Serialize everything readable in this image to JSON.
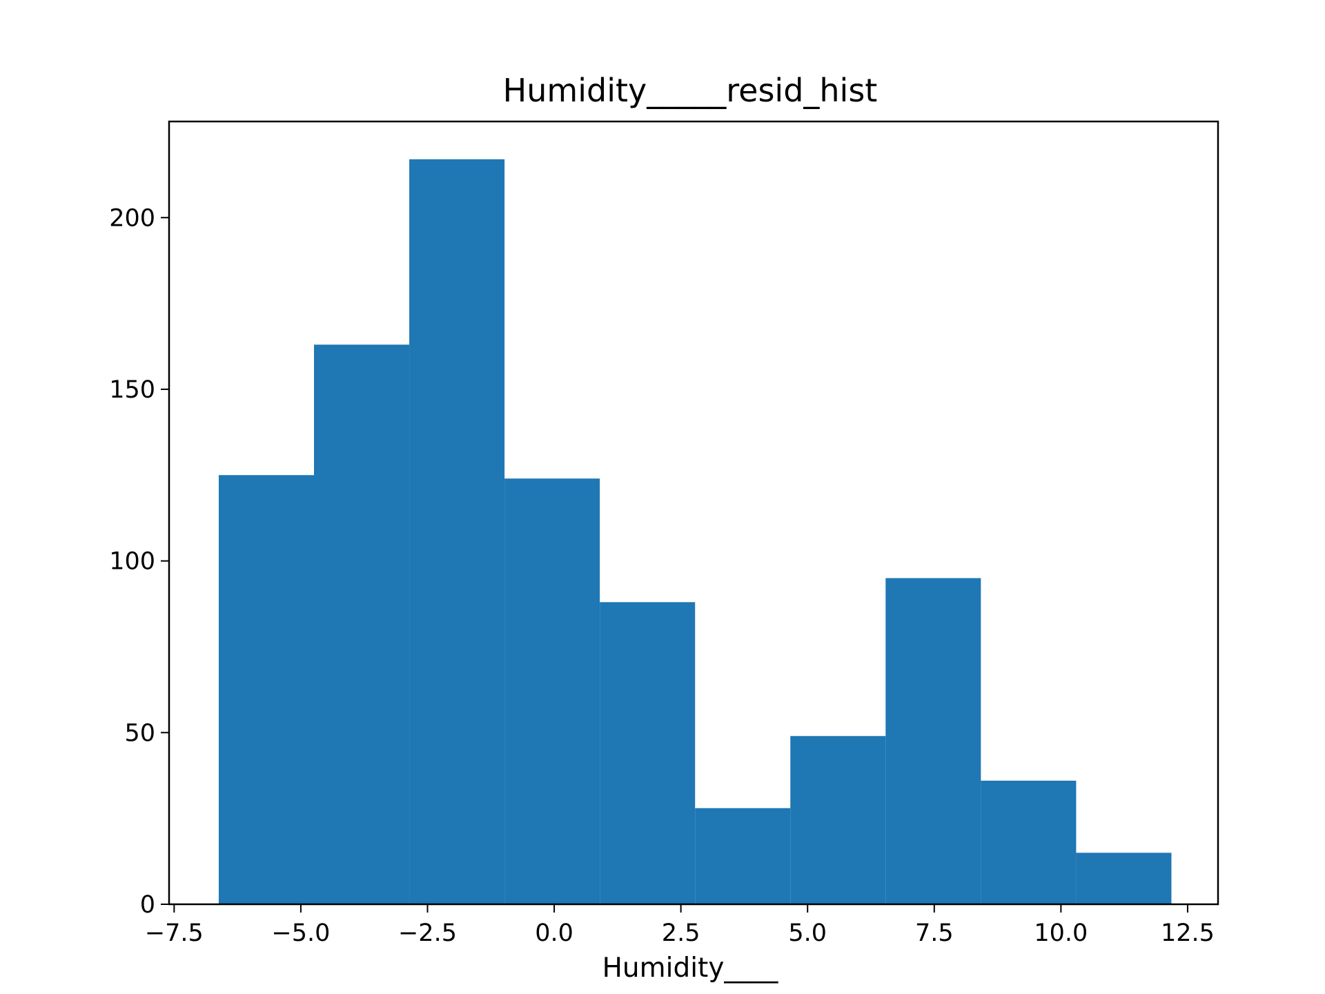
{
  "chart_data": {
    "type": "bar",
    "subtype": "histogram",
    "title": "Humidity_____resid_hist",
    "xlabel": "Humidity____",
    "ylabel": "",
    "bins": [
      {
        "x0": -6.62,
        "x1": -4.74,
        "count": 125
      },
      {
        "x0": -4.74,
        "x1": -2.86,
        "count": 163
      },
      {
        "x0": -2.86,
        "x1": -0.98,
        "count": 217
      },
      {
        "x0": -0.98,
        "x1": 0.9,
        "count": 124
      },
      {
        "x0": 0.9,
        "x1": 2.78,
        "count": 88
      },
      {
        "x0": 2.78,
        "x1": 4.66,
        "count": 28
      },
      {
        "x0": 4.66,
        "x1": 6.54,
        "count": 49
      },
      {
        "x0": 6.54,
        "x1": 8.42,
        "count": 95
      },
      {
        "x0": 8.42,
        "x1": 10.3,
        "count": 36
      },
      {
        "x0": 10.3,
        "x1": 12.18,
        "count": 15
      }
    ],
    "xlim": [
      -7.6,
      13.1
    ],
    "ylim": [
      0,
      228
    ],
    "xticks": [
      -7.5,
      -5.0,
      -2.5,
      0.0,
      2.5,
      5.0,
      7.5,
      10.0,
      12.5
    ],
    "xtick_labels": [
      "−7.5",
      "−5.0",
      "−2.5",
      "0.0",
      "2.5",
      "5.0",
      "7.5",
      "10.0",
      "12.5"
    ],
    "yticks": [
      0,
      50,
      100,
      150,
      200
    ],
    "ytick_labels": [
      "0",
      "50",
      "100",
      "150",
      "200"
    ],
    "bar_color": "#1f77b4",
    "grid": false,
    "legend": "none"
  }
}
